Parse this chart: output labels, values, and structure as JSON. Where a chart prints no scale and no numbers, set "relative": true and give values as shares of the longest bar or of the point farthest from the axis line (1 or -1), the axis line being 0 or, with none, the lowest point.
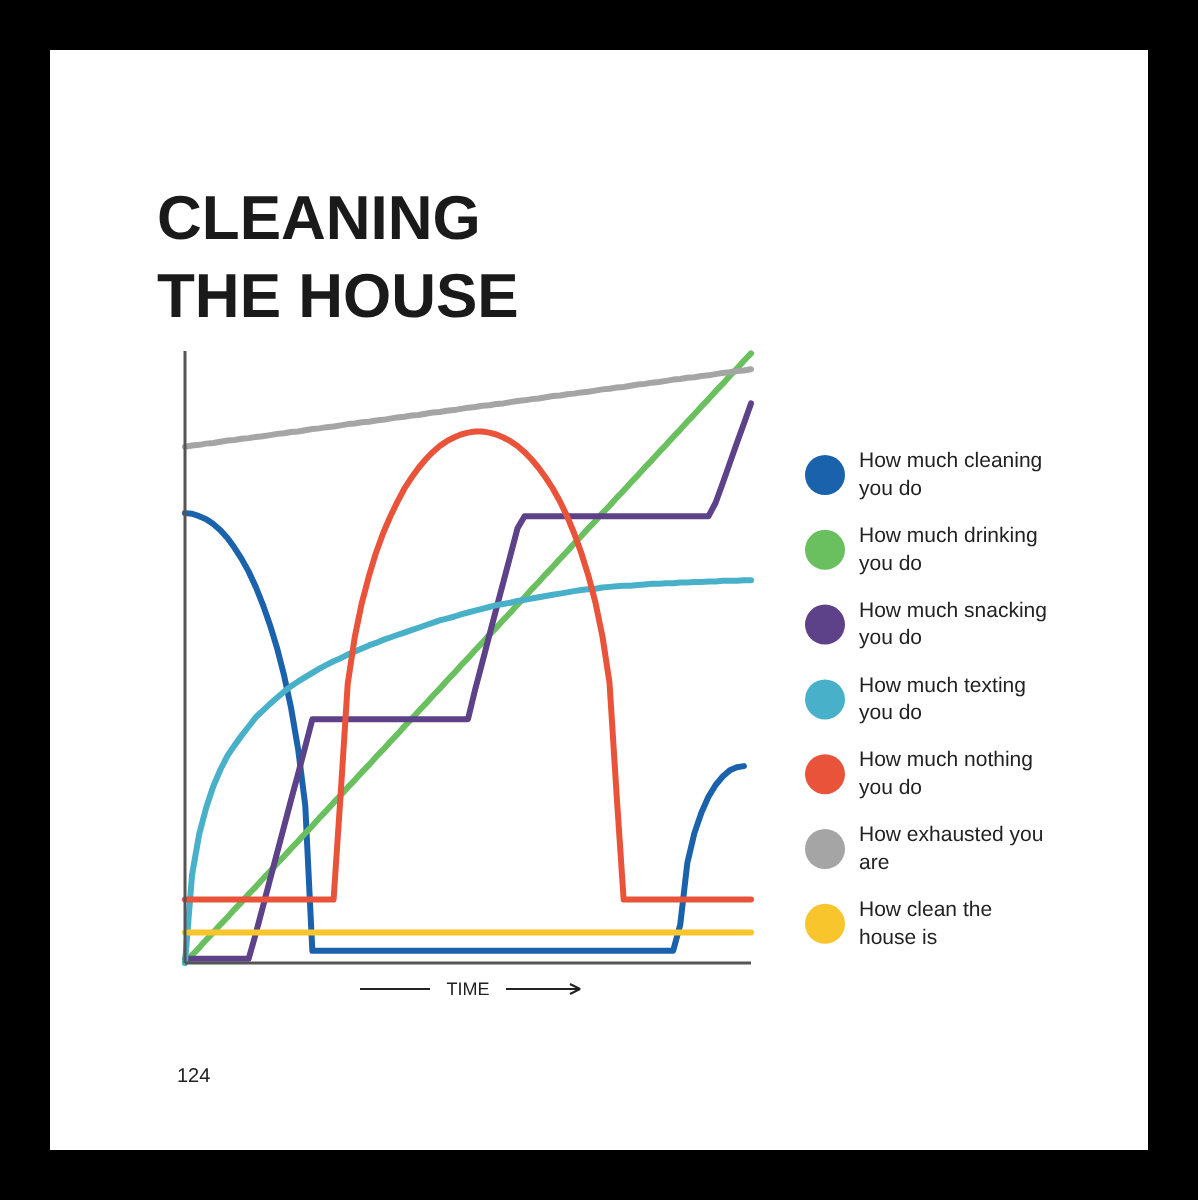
{
  "chart_data": {
    "type": "line",
    "title": "CLEANING THE HOUSE",
    "xlabel": "TIME",
    "relative": true,
    "legend": "right",
    "annotations": [
      "124"
    ],
    "categories": [
      null,
      null,
      null,
      null,
      null,
      null,
      null,
      null,
      null,
      null,
      null,
      null,
      null,
      null,
      null,
      null,
      null,
      null,
      null,
      null,
      null,
      null,
      null,
      null,
      null,
      null,
      null,
      null,
      null,
      null,
      null,
      null,
      null,
      null,
      null,
      null,
      null,
      null,
      null,
      null,
      null,
      null,
      null,
      null,
      null,
      null,
      null,
      null,
      null,
      null,
      null,
      null,
      null,
      null,
      null,
      null,
      null,
      null,
      null,
      null,
      null,
      null,
      null,
      null,
      null,
      null,
      null,
      null,
      null,
      null,
      null,
      null,
      null,
      null,
      null,
      null,
      null,
      null,
      null,
      null,
      null
    ],
    "series": [
      {
        "name": "How much cleaning you do",
        "color": "#1a62ab",
        "values": [
          0.738,
          0.737,
          0.733,
          0.728,
          0.72,
          0.71,
          0.697,
          0.681,
          0.663,
          0.642,
          0.617,
          0.588,
          0.555,
          0.517,
          0.472,
          0.418,
          0.35,
          0.258,
          0.02,
          0.02,
          0.02,
          0.02,
          0.02,
          0.02,
          0.02,
          0.02,
          0.02,
          0.02,
          0.02,
          0.02,
          0.02,
          0.02,
          0.02,
          0.02,
          0.02,
          0.02,
          0.02,
          0.02,
          0.02,
          0.02,
          0.02,
          0.02,
          0.02,
          0.02,
          0.02,
          0.02,
          0.02,
          0.02,
          0.02,
          0.02,
          0.02,
          0.02,
          0.02,
          0.02,
          0.02,
          0.02,
          0.02,
          0.02,
          0.02,
          0.02,
          0.02,
          0.02,
          0.02,
          0.02,
          0.02,
          0.02,
          0.02,
          0.02,
          0.02,
          0.02,
          0.063,
          0.164,
          0.213,
          0.247,
          0.273,
          0.292,
          0.306,
          0.316,
          0.321,
          0.323,
          null
        ]
      },
      {
        "name": "How much drinking you do",
        "color": "#6abf5e",
        "values": [
          0,
          0.013,
          0.025,
          0.038,
          0.05,
          0.063,
          0.075,
          0.088,
          0.1,
          0.113,
          0.125,
          0.138,
          0.15,
          0.163,
          0.175,
          0.188,
          0.2,
          0.213,
          0.225,
          0.238,
          0.25,
          0.263,
          0.275,
          0.288,
          0.3,
          0.313,
          0.325,
          0.338,
          0.35,
          0.363,
          0.375,
          0.388,
          0.4,
          0.413,
          0.425,
          0.438,
          0.45,
          0.463,
          0.475,
          0.488,
          0.5,
          0.513,
          0.525,
          0.538,
          0.55,
          0.563,
          0.575,
          0.588,
          0.6,
          0.613,
          0.625,
          0.638,
          0.65,
          0.663,
          0.675,
          0.688,
          0.7,
          0.713,
          0.725,
          0.738,
          0.75,
          0.763,
          0.775,
          0.788,
          0.8,
          0.813,
          0.825,
          0.838,
          0.85,
          0.863,
          0.875,
          0.888,
          0.9,
          0.913,
          0.925,
          0.938,
          0.95,
          0.963,
          0.975,
          0.988,
          1
        ]
      },
      {
        "name": "How much snacking you do",
        "color": "#5d4189",
        "values": [
          0.007,
          0.007,
          0.007,
          0.007,
          0.007,
          0.007,
          0.007,
          0.007,
          0.007,
          0.007,
          0.048,
          0.092,
          0.136,
          0.18,
          0.224,
          0.268,
          0.311,
          0.355,
          0.4,
          0.4,
          0.4,
          0.4,
          0.4,
          0.4,
          0.4,
          0.4,
          0.4,
          0.4,
          0.4,
          0.4,
          0.4,
          0.4,
          0.4,
          0.4,
          0.4,
          0.4,
          0.4,
          0.4,
          0.4,
          0.4,
          0.4,
          0.448,
          0.492,
          0.537,
          0.581,
          0.625,
          0.669,
          0.713,
          0.733,
          0.733,
          0.733,
          0.733,
          0.733,
          0.733,
          0.733,
          0.733,
          0.733,
          0.733,
          0.733,
          0.733,
          0.733,
          0.733,
          0.733,
          0.733,
          0.733,
          0.733,
          0.733,
          0.733,
          0.733,
          0.733,
          0.733,
          0.733,
          0.733,
          0.733,
          0.733,
          0.755,
          0.787,
          0.82,
          0.853,
          0.885,
          0.918
        ]
      },
      {
        "name": "How much texting you do",
        "color": "#48b1c9",
        "values": [
          0,
          0.145,
          0.211,
          0.255,
          0.29,
          0.317,
          0.34,
          0.357,
          0.373,
          0.388,
          0.403,
          0.414,
          0.425,
          0.435,
          0.445,
          0.454,
          0.462,
          0.469,
          0.476,
          0.483,
          0.489,
          0.495,
          0.5,
          0.506,
          0.511,
          0.516,
          0.521,
          0.525,
          0.53,
          0.534,
          0.538,
          0.542,
          0.546,
          0.55,
          0.554,
          0.558,
          0.562,
          0.565,
          0.568,
          0.572,
          0.575,
          0.578,
          0.581,
          0.584,
          0.587,
          0.589,
          0.591,
          0.594,
          0.596,
          0.598,
          0.6,
          0.602,
          0.604,
          0.606,
          0.608,
          0.61,
          0.612,
          0.613,
          0.614,
          0.616,
          0.617,
          0.618,
          0.619,
          0.619,
          0.62,
          0.621,
          0.622,
          0.622,
          0.623,
          0.623,
          0.624,
          0.624,
          0.625,
          0.625,
          0.626,
          0.626,
          0.627,
          0.627,
          0.627,
          0.628,
          0.628
        ]
      },
      {
        "name": "How much nothing you do",
        "color": "#e8533a",
        "values": [
          0.104,
          0.104,
          0.104,
          0.104,
          0.104,
          0.104,
          0.104,
          0.104,
          0.104,
          0.104,
          0.104,
          0.104,
          0.104,
          0.104,
          0.104,
          0.104,
          0.104,
          0.104,
          0.104,
          0.104,
          0.104,
          0.104,
          0.277,
          0.458,
          0.535,
          0.591,
          0.635,
          0.673,
          0.705,
          0.732,
          0.756,
          0.778,
          0.796,
          0.812,
          0.826,
          0.838,
          0.848,
          0.856,
          0.862,
          0.867,
          0.87,
          0.872,
          0.872,
          0.87,
          0.867,
          0.862,
          0.856,
          0.848,
          0.838,
          0.826,
          0.812,
          0.796,
          0.778,
          0.757,
          0.733,
          0.705,
          0.673,
          0.636,
          0.592,
          0.536,
          0.46,
          0.277,
          0.104,
          0.104,
          0.104,
          0.104,
          0.104,
          0.104,
          0.104,
          0.104,
          0.104,
          0.104,
          0.104,
          0.104,
          0.104,
          0.104,
          0.104,
          0.104,
          0.104,
          0.104,
          0.104
        ]
      },
      {
        "name": "How exhausted you are",
        "color": "#a5a5a5",
        "values": [
          0.847,
          0.849,
          0.85,
          0.852,
          0.853,
          0.855,
          0.857,
          0.858,
          0.86,
          0.861,
          0.863,
          0.864,
          0.866,
          0.868,
          0.869,
          0.871,
          0.872,
          0.874,
          0.876,
          0.877,
          0.879,
          0.88,
          0.882,
          0.884,
          0.885,
          0.887,
          0.888,
          0.89,
          0.891,
          0.893,
          0.895,
          0.896,
          0.898,
          0.899,
          0.901,
          0.903,
          0.904,
          0.906,
          0.907,
          0.909,
          0.911,
          0.912,
          0.914,
          0.915,
          0.917,
          0.918,
          0.92,
          0.922,
          0.923,
          0.925,
          0.926,
          0.928,
          0.93,
          0.931,
          0.933,
          0.934,
          0.936,
          0.937,
          0.939,
          0.941,
          0.942,
          0.944,
          0.945,
          0.947,
          0.949,
          0.95,
          0.952,
          0.953,
          0.955,
          0.957,
          0.958,
          0.96,
          0.961,
          0.963,
          0.964,
          0.966,
          0.968,
          0.969,
          0.971,
          0.972,
          0.974
        ]
      },
      {
        "name": "How clean the house is",
        "color": "#f8c62c",
        "values": [
          0.05,
          0.05,
          0.05,
          0.05,
          0.05,
          0.05,
          0.05,
          0.05,
          0.05,
          0.05,
          0.05,
          0.05,
          0.05,
          0.05,
          0.05,
          0.05,
          0.05,
          0.05,
          0.05,
          0.05,
          0.05,
          0.05,
          0.05,
          0.05,
          0.05,
          0.05,
          0.05,
          0.05,
          0.05,
          0.05,
          0.05,
          0.05,
          0.05,
          0.05,
          0.05,
          0.05,
          0.05,
          0.05,
          0.05,
          0.05,
          0.05,
          0.05,
          0.05,
          0.05,
          0.05,
          0.05,
          0.05,
          0.05,
          0.05,
          0.05,
          0.05,
          0.05,
          0.05,
          0.05,
          0.05,
          0.05,
          0.05,
          0.05,
          0.05,
          0.05,
          0.05,
          0.05,
          0.05,
          0.05,
          0.05,
          0.05,
          0.05,
          0.05,
          0.05,
          0.05,
          0.05,
          0.05,
          0.05,
          0.05,
          0.05,
          0.05,
          0.05,
          0.05,
          0.05,
          0.05,
          0.05
        ]
      }
    ]
  }
}
